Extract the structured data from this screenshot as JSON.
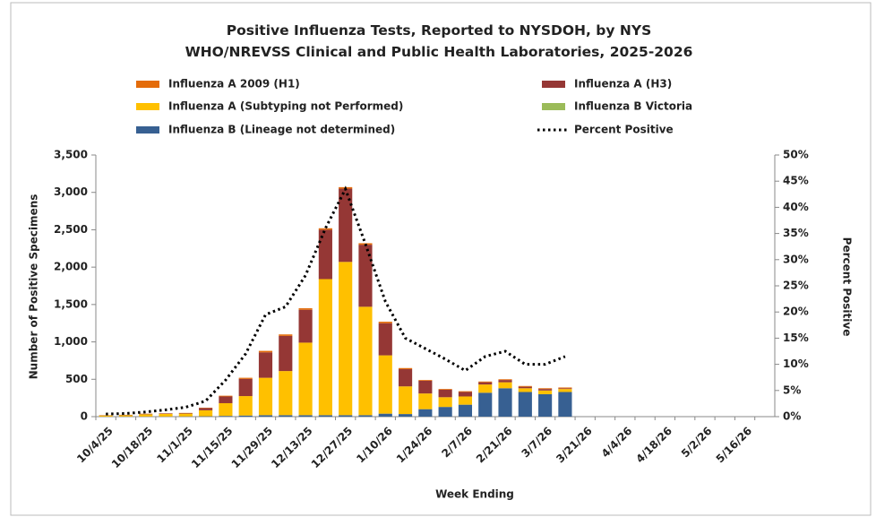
{
  "chart_data": {
    "type": "bar",
    "title": "Positive Influenza Tests, Reported to NYSDOH, by NYS WHO/NREVSS Clinical and Public Health Laboratories, 2025-2026",
    "x_label": "Week Ending",
    "y_label": "Number of Positive Specimens",
    "y2_label": "Percent Positive",
    "stacked": true,
    "categories": [
      "10/4/25",
      null,
      "10/18/25",
      null,
      "11/1/25",
      null,
      "11/15/25",
      null,
      "11/29/25",
      null,
      "12/13/25",
      null,
      "12/27/25",
      null,
      "1/10/26",
      null,
      "1/24/26",
      null,
      "2/7/26",
      null,
      "2/21/26",
      null,
      "3/7/26",
      null,
      "3/21/26",
      null,
      "4/4/26",
      null,
      "4/18/26",
      null,
      "5/2/26",
      null,
      "5/16/26",
      null
    ],
    "series": [
      {
        "name": "Influenza B (Lineage not determined)",
        "color": "#376092",
        "values": [
          1,
          2,
          2,
          2,
          3,
          5,
          10,
          15,
          20,
          20,
          20,
          20,
          20,
          20,
          40,
          35,
          100,
          130,
          160,
          320,
          380,
          330,
          300,
          330,
          null,
          null,
          null,
          null,
          null,
          null,
          null,
          null,
          null,
          null
        ]
      },
      {
        "name": "Influenza B Victoria",
        "color": "#9bbb59",
        "values": [
          0,
          0,
          0,
          0,
          0,
          0,
          0,
          0,
          0,
          0,
          0,
          0,
          0,
          0,
          0,
          0,
          0,
          0,
          0,
          0,
          0,
          0,
          0,
          0,
          null,
          null,
          null,
          null,
          null,
          null,
          null,
          null,
          null,
          null
        ]
      },
      {
        "name": "Influenza A (Subtyping not Performed)",
        "color": "#ffc000",
        "values": [
          15,
          18,
          30,
          35,
          38,
          80,
          170,
          260,
          500,
          590,
          970,
          1820,
          2050,
          1450,
          780,
          370,
          210,
          130,
          110,
          110,
          80,
          50,
          50,
          40,
          null,
          null,
          null,
          null,
          null,
          null,
          null,
          null,
          null,
          null
        ]
      },
      {
        "name": "Influenza A (H3)",
        "color": "#953735",
        "values": [
          3,
          4,
          6,
          6,
          7,
          30,
          90,
          230,
          340,
          470,
          440,
          660,
          980,
          830,
          430,
          230,
          170,
          100,
          60,
          30,
          30,
          20,
          20,
          10,
          null,
          null,
          null,
          null,
          null,
          null,
          null,
          null,
          null,
          null
        ]
      },
      {
        "name": "Influenza A 2009 (H1)",
        "color": "#e46c0a",
        "values": [
          1,
          1,
          2,
          2,
          2,
          5,
          10,
          15,
          20,
          20,
          20,
          20,
          20,
          20,
          20,
          15,
          10,
          10,
          10,
          10,
          10,
          10,
          10,
          10,
          null,
          null,
          null,
          null,
          null,
          null,
          null,
          null,
          null,
          null
        ]
      },
      {
        "name": "Percent Positive",
        "type": "line",
        "axis": "y2",
        "color": "#000000",
        "values": [
          0.5,
          0.6,
          0.9,
          1.3,
          1.8,
          3,
          7,
          12,
          19.5,
          21,
          27,
          36,
          43.5,
          33,
          22,
          15,
          13,
          11,
          8.8,
          11.5,
          12.5,
          10,
          10,
          11.5,
          null,
          null,
          null,
          null,
          null,
          null,
          null,
          null,
          null,
          null
        ]
      }
    ],
    "ylim": [
      0,
      3500
    ],
    "yticks": [
      0,
      500,
      {
        "value": 1000,
        "label": "1,000"
      },
      {
        "value": 1500,
        "label": "1,500"
      },
      {
        "value": 2000,
        "label": "2,000"
      },
      {
        "value": 2500,
        "label": "2,500"
      },
      {
        "value": 3000,
        "label": "3,000"
      },
      {
        "value": 3500,
        "label": "3,500"
      }
    ],
    "y2lim": [
      0,
      50
    ],
    "y2ticks": [
      {
        "value": 0,
        "label": "0%"
      },
      {
        "value": 5,
        "label": "5%"
      },
      {
        "value": 10,
        "label": "10%"
      },
      {
        "value": 15,
        "label": "15%"
      },
      {
        "value": 20,
        "label": "20%"
      },
      {
        "value": 25,
        "label": "25%"
      },
      {
        "value": 30,
        "label": "30%"
      },
      {
        "value": 35,
        "label": "35%"
      },
      {
        "value": 40,
        "label": "40%"
      },
      {
        "value": 45,
        "label": "45%"
      },
      {
        "value": 50,
        "label": "50%"
      }
    ],
    "grid": false
  }
}
